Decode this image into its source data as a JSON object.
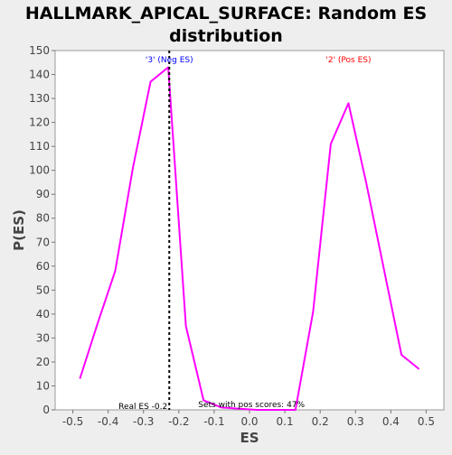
{
  "chart_data": {
    "type": "line",
    "title_lines": [
      "HALLMARK_APICAL_SURFACE: Random ES",
      "distribution"
    ],
    "xlabel": "ES",
    "ylabel": "P(ES)",
    "xlim": [
      -0.55,
      0.55
    ],
    "ylim": [
      0,
      150
    ],
    "xticks": [
      -0.5,
      -0.4,
      -0.3,
      -0.2,
      -0.1,
      0.0,
      0.1,
      0.2,
      0.3,
      0.4,
      0.5
    ],
    "xtick_labels": [
      "-0.5",
      "-0.4",
      "-0.3",
      "-0.2",
      "-0.1",
      "0.0",
      "0.1",
      "0.2",
      "0.3",
      "0.4",
      "0.5"
    ],
    "yticks": [
      0,
      10,
      20,
      30,
      40,
      50,
      60,
      70,
      80,
      90,
      100,
      110,
      120,
      130,
      140,
      150
    ],
    "ytick_labels": [
      "0",
      "10",
      "20",
      "30",
      "40",
      "50",
      "60",
      "70",
      "80",
      "90",
      "100",
      "110",
      "120",
      "130",
      "140",
      "150"
    ],
    "grid": false,
    "series": [
      {
        "color": "#ff00ff",
        "x": [
          -0.48,
          -0.43,
          -0.38,
          -0.33,
          -0.28,
          -0.23,
          -0.18,
          -0.13,
          -0.08,
          0.02,
          0.13,
          0.18,
          0.23,
          0.28,
          0.33,
          0.38,
          0.43,
          0.48
        ],
        "y": [
          13,
          36,
          58,
          101,
          137,
          143,
          35,
          4,
          1,
          0,
          0,
          41,
          111,
          128,
          95,
          59,
          23,
          17
        ]
      }
    ],
    "annotations": {
      "neg_label": "'3' (Neg ES)",
      "neg_color": "#0000ff",
      "pos_label": "'2' (Pos ES)",
      "pos_color": "#ff0000",
      "real_es_label": "Real ES -0.2",
      "real_es_x": -0.227,
      "sets_label": "Sets with pos scores: 47%"
    }
  }
}
